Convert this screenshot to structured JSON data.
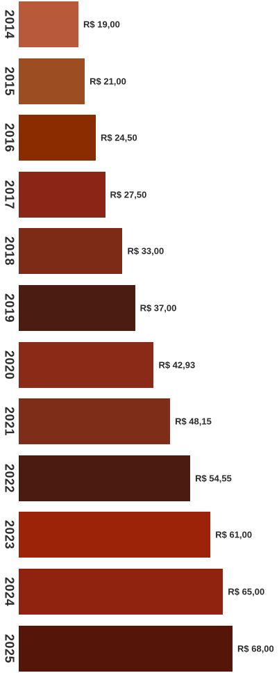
{
  "chart_data": {
    "type": "bar",
    "orientation": "horizontal",
    "categories": [
      "2014",
      "2015",
      "2016",
      "2017",
      "2018",
      "2019",
      "2020",
      "2021",
      "2022",
      "2023",
      "2024",
      "2025"
    ],
    "values": [
      19.0,
      21.0,
      24.5,
      27.5,
      33.0,
      37.0,
      42.93,
      48.15,
      54.55,
      61.0,
      65.0,
      68.0
    ],
    "value_labels": [
      "R$ 19,00",
      "R$ 21,00",
      "R$ 24,50",
      "R$ 27,50",
      "R$ 33,00",
      "R$ 37,00",
      "R$ 42,93",
      "R$ 48,15",
      "R$ 54,55",
      "R$ 61,00",
      "R$ 65,00",
      "R$  68,00"
    ],
    "colors": [
      "#b85a3a",
      "#9c4d22",
      "#8a2b00",
      "#8b2616",
      "#7d2a16",
      "#4a1c12",
      "#8a2a17",
      "#7e2d18",
      "#4b1b12",
      "#9c2208",
      "#8f2310",
      "#551508"
    ],
    "title": "",
    "xlabel": "",
    "ylabel": "",
    "legend": "none",
    "grid": false
  }
}
